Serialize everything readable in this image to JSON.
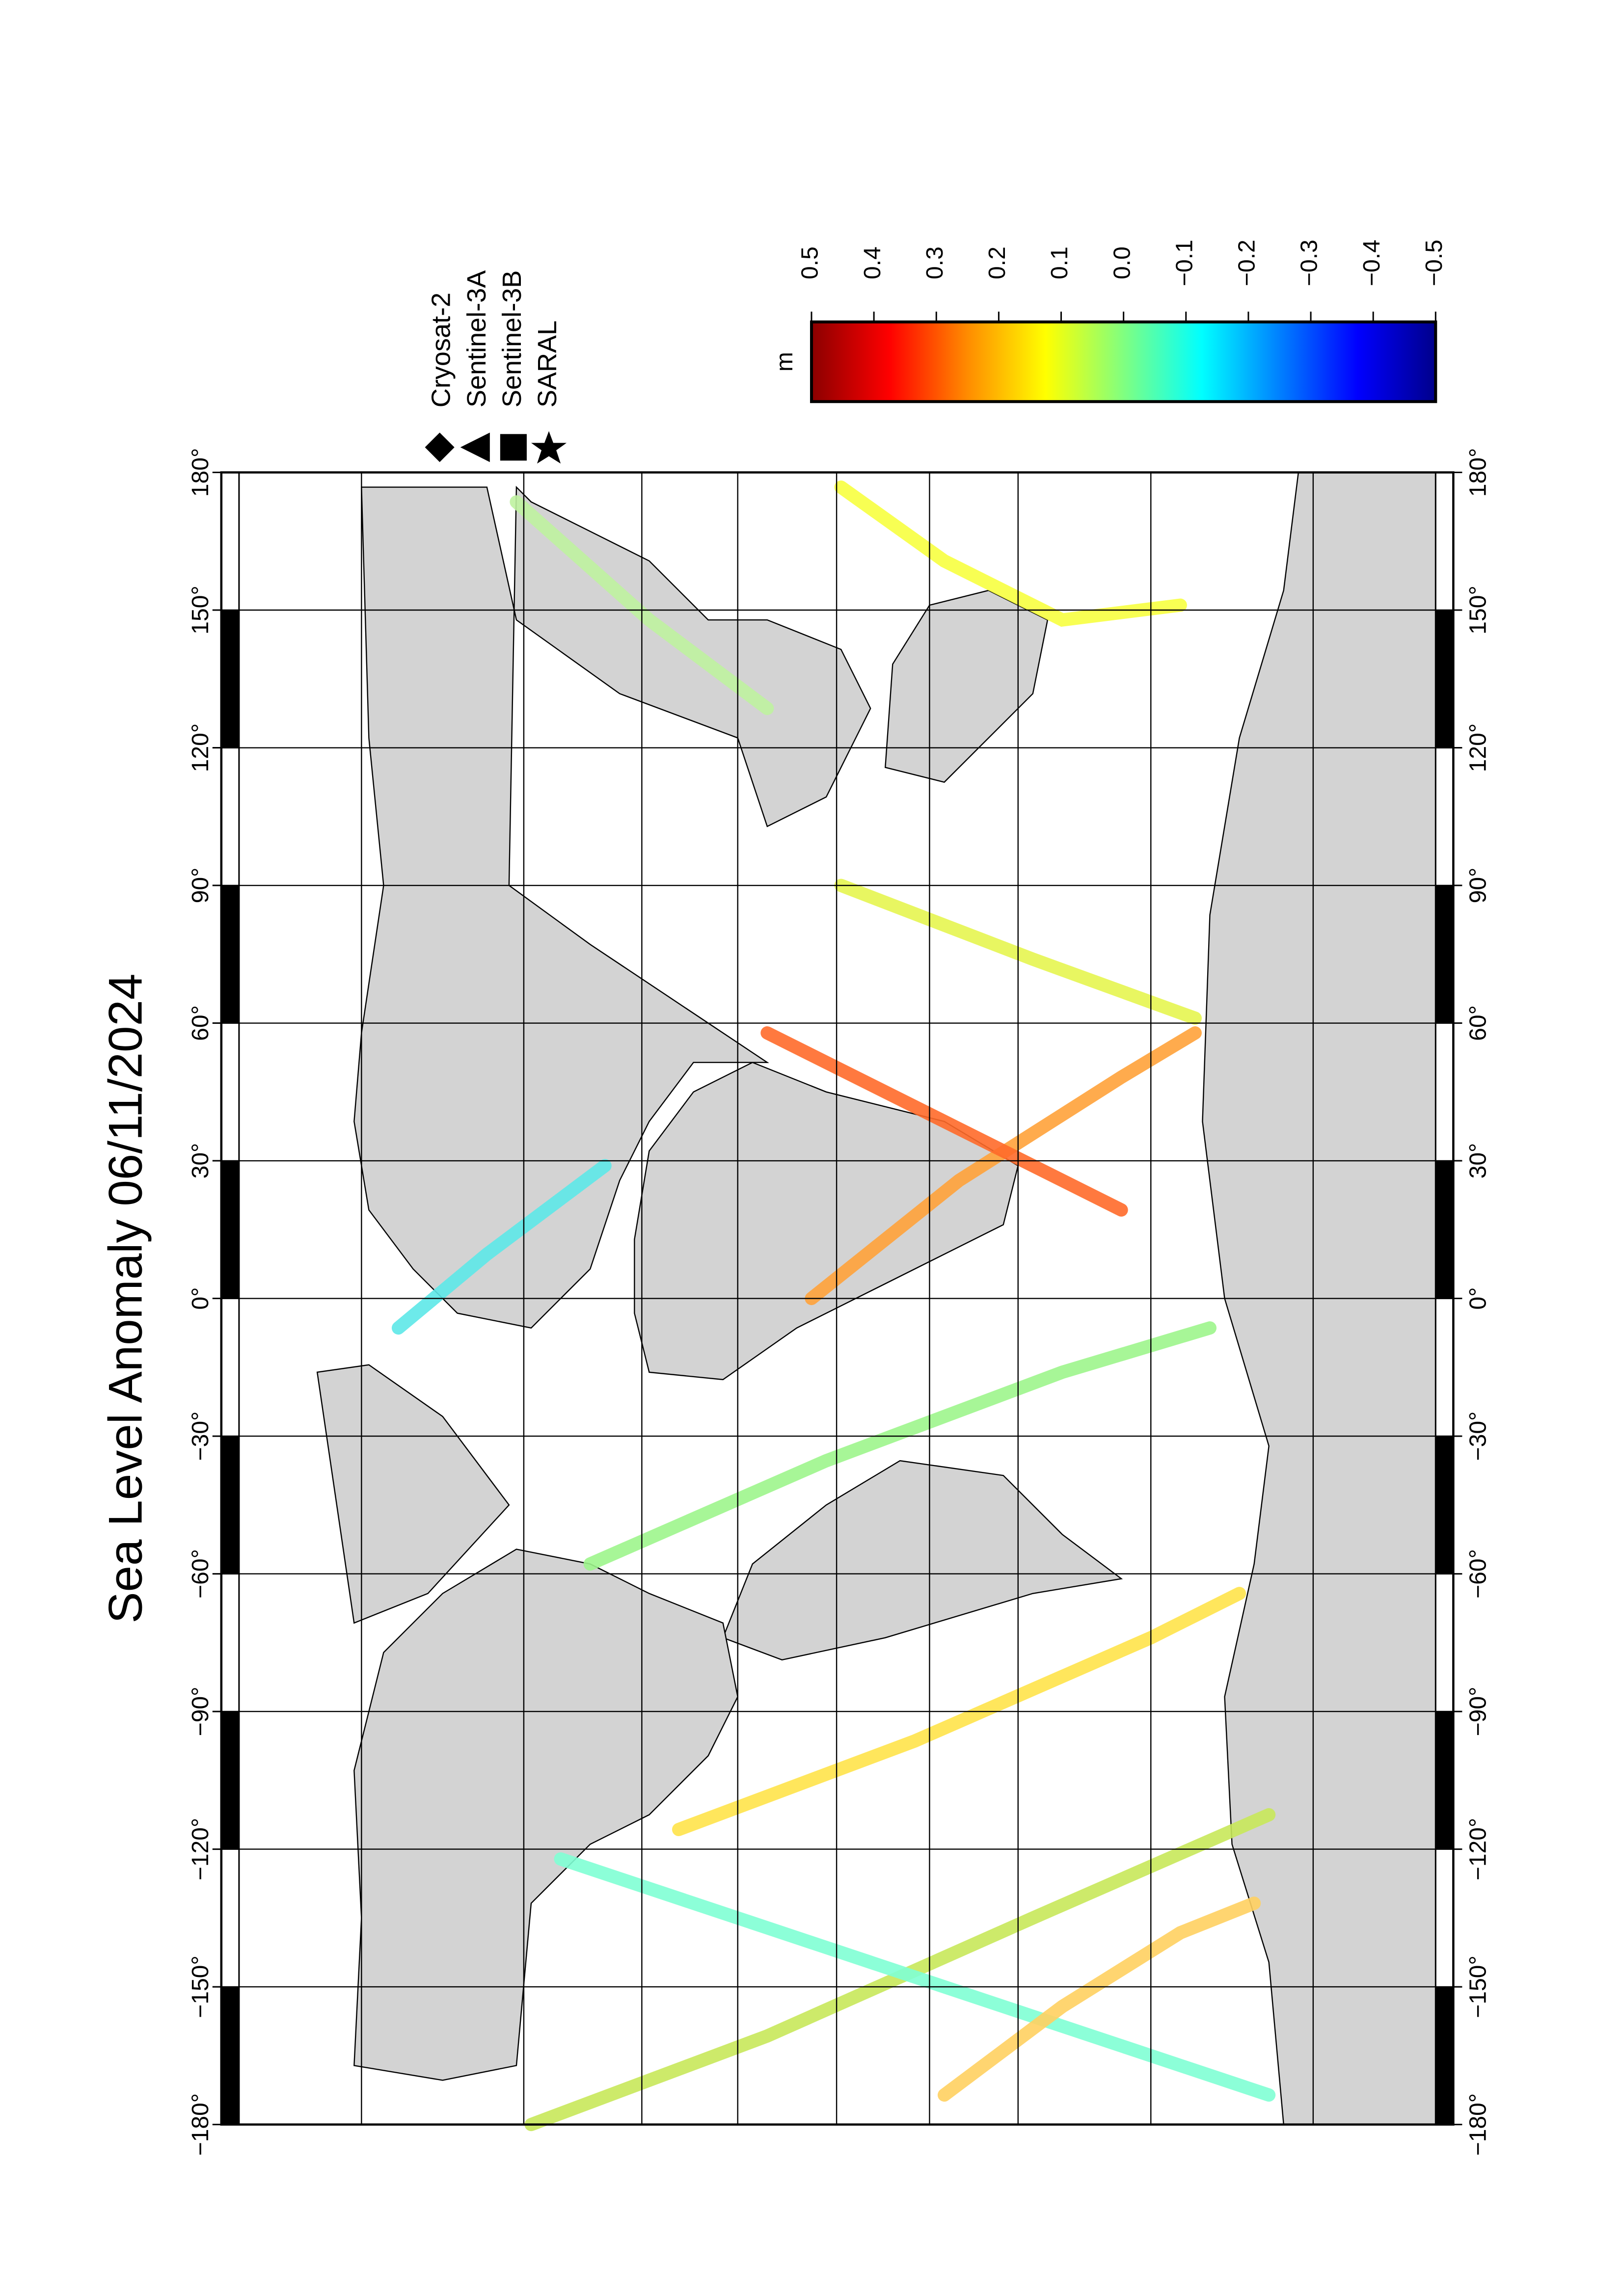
{
  "chart_data": {
    "type": "map",
    "title": "Sea Level Anomaly 06/11/2024",
    "xlim": [
      -180,
      180
    ],
    "xticks": [
      {
        "value": -180,
        "label": "−180°"
      },
      {
        "value": -150,
        "label": "−150°"
      },
      {
        "value": -120,
        "label": "−120°"
      },
      {
        "value": -90,
        "label": "−90°"
      },
      {
        "value": -60,
        "label": "−60°"
      },
      {
        "value": -30,
        "label": "−30°"
      },
      {
        "value": 0,
        "label": "0°"
      },
      {
        "value": 30,
        "label": "30°"
      },
      {
        "value": 60,
        "label": "60°"
      },
      {
        "value": 90,
        "label": "90°"
      },
      {
        "value": 120,
        "label": "120°"
      },
      {
        "value": 150,
        "label": "150°"
      },
      {
        "value": 180,
        "label": "180°"
      }
    ],
    "legend": [
      "Cryosat-2",
      "Sentinel-3A",
      "Sentinel-3B",
      "SARAL"
    ],
    "colorbar": {
      "label": "m",
      "lim": [
        0.5,
        -0.5
      ],
      "ticks": [
        0.5,
        0.4,
        0.3,
        0.2,
        0.1,
        {
          "value": 0,
          "label": "0.0"
        },
        {
          "value": -0.1,
          "label": "−0.1"
        },
        {
          "value": -0.2,
          "label": "−0.2"
        },
        {
          "value": -0.3,
          "label": "−0.3"
        },
        {
          "value": -0.4,
          "label": "−0.4"
        },
        {
          "value": -0.5,
          "label": "−0.5"
        }
      ],
      "colors": [
        "#8b0000",
        "#ff0000",
        "#ff8c00",
        "#ffff00",
        "#80ff80",
        "#00ffff",
        "#0080ff",
        "#0000ff",
        "#00008b"
      ]
    }
  }
}
